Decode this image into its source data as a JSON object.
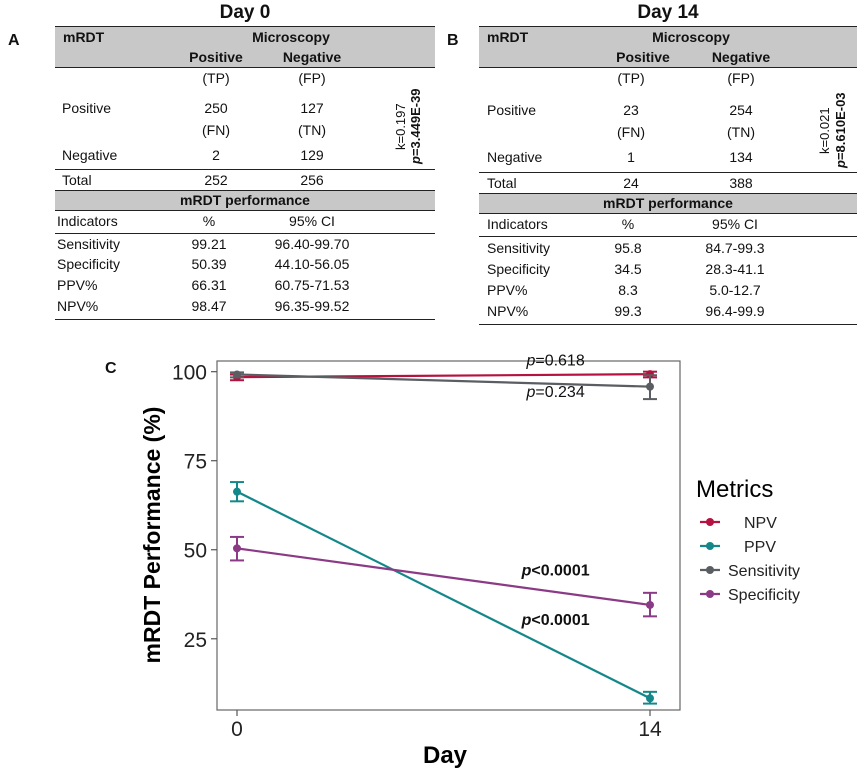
{
  "panel_a": {
    "letter": "A",
    "title": "Day 0",
    "header_left": "mRDT",
    "header_group": "Microscopy",
    "col_pos": "Positive",
    "col_neg": "Negative",
    "row_tp": "(TP)",
    "row_fp": "(FP)",
    "row_positive": "Positive",
    "pos_val": "250",
    "fp_val": "127",
    "row_fn": "(FN)",
    "row_tn": "(TN)",
    "row_negative": "Negative",
    "fn_val": "2",
    "tn_val": "129",
    "kappa": "k=0.197",
    "p_label": "p",
    "p_value": "=3.449E-39",
    "total_label": "Total",
    "total_pos": "252",
    "total_neg": "256",
    "perf_title": "mRDT performance",
    "ind_label": "Indicators",
    "pct_label": "%",
    "ci_label": "95% CI",
    "metrics": [
      {
        "name": "Sensitivity",
        "value": "99.21",
        "ci": "96.40-99.70"
      },
      {
        "name": "Specificity",
        "value": "50.39",
        "ci": "44.10-56.05"
      },
      {
        "name": "PPV%",
        "value": "66.31",
        "ci": "60.75-71.53"
      },
      {
        "name": "NPV%",
        "value": "98.47",
        "ci": "96.35-99.52"
      }
    ]
  },
  "panel_b": {
    "letter": "B",
    "title": "Day 14",
    "header_left": "mRDT",
    "header_group": "Microscopy",
    "col_pos": "Positive",
    "col_neg": "Negative",
    "row_tp": "(TP)",
    "row_fp": "(FP)",
    "row_positive": "Positive",
    "pos_val": "23",
    "fp_val": "254",
    "row_fn": "(FN)",
    "row_tn": "(TN)",
    "row_negative": "Negative",
    "fn_val": "1",
    "tn_val": "134",
    "kappa": "k=0.021",
    "p_label": "p",
    "p_value": "=8.610E-03",
    "total_label": "Total",
    "total_pos": "24",
    "total_neg": "388",
    "perf_title": "mRDT performance",
    "ind_label": "Indicators",
    "pct_label": "%",
    "ci_label": "95% CI",
    "metrics": [
      {
        "name": "Sensitivity",
        "value": "95.8",
        "ci": "84.7-99.3"
      },
      {
        "name": "Specificity",
        "value": "34.5",
        "ci": "28.3-41.1"
      },
      {
        "name": "PPV%",
        "value": "8.3",
        "ci": "5.0-12.7"
      },
      {
        "name": "NPV%",
        "value": "99.3",
        "ci": "96.4-99.9"
      }
    ]
  },
  "panel_c": {
    "letter": "C"
  },
  "chart_data": {
    "type": "line",
    "xlabel": "Day",
    "ylabel": "mRDT Performance (%)",
    "x": [
      0,
      14
    ],
    "x_ticks": [
      "0",
      "14"
    ],
    "ylim": [
      5,
      103
    ],
    "y_ticks": [
      25,
      50,
      75,
      100
    ],
    "legend_title": "Metrics",
    "series": [
      {
        "name": "NPV",
        "color": "#b5123f",
        "values": [
          98.47,
          99.3
        ],
        "err_low": [
          97.6,
          98.4
        ],
        "err_high": [
          99.2,
          100.0
        ]
      },
      {
        "name": "PPV",
        "color": "#13878a",
        "values": [
          66.31,
          8.3
        ],
        "err_low": [
          63.6,
          6.8
        ],
        "err_high": [
          69.0,
          10.1
        ]
      },
      {
        "name": "Sensitivity",
        "color": "#5a5e62",
        "values": [
          99.21,
          95.8
        ],
        "err_low": [
          98.4,
          92.3
        ],
        "err_high": [
          99.8,
          99.0
        ]
      },
      {
        "name": "Specificity",
        "color": "#8b3a86",
        "values": [
          50.39,
          34.5
        ],
        "err_low": [
          47.0,
          31.3
        ],
        "err_high": [
          53.6,
          37.9
        ]
      }
    ],
    "annotations": [
      {
        "italic": "p",
        "rest": "=0.618",
        "bold": false,
        "x": 10.8,
        "y": 101.8
      },
      {
        "italic": "p",
        "rest": "=0.234",
        "bold": false,
        "x": 10.8,
        "y": 92.9
      },
      {
        "italic": "p",
        "rest": "<0.0001",
        "bold": true,
        "x": 10.8,
        "y": 42.8
      },
      {
        "italic": "p",
        "rest": "<0.0001",
        "bold": true,
        "x": 10.8,
        "y": 28.9
      }
    ]
  }
}
